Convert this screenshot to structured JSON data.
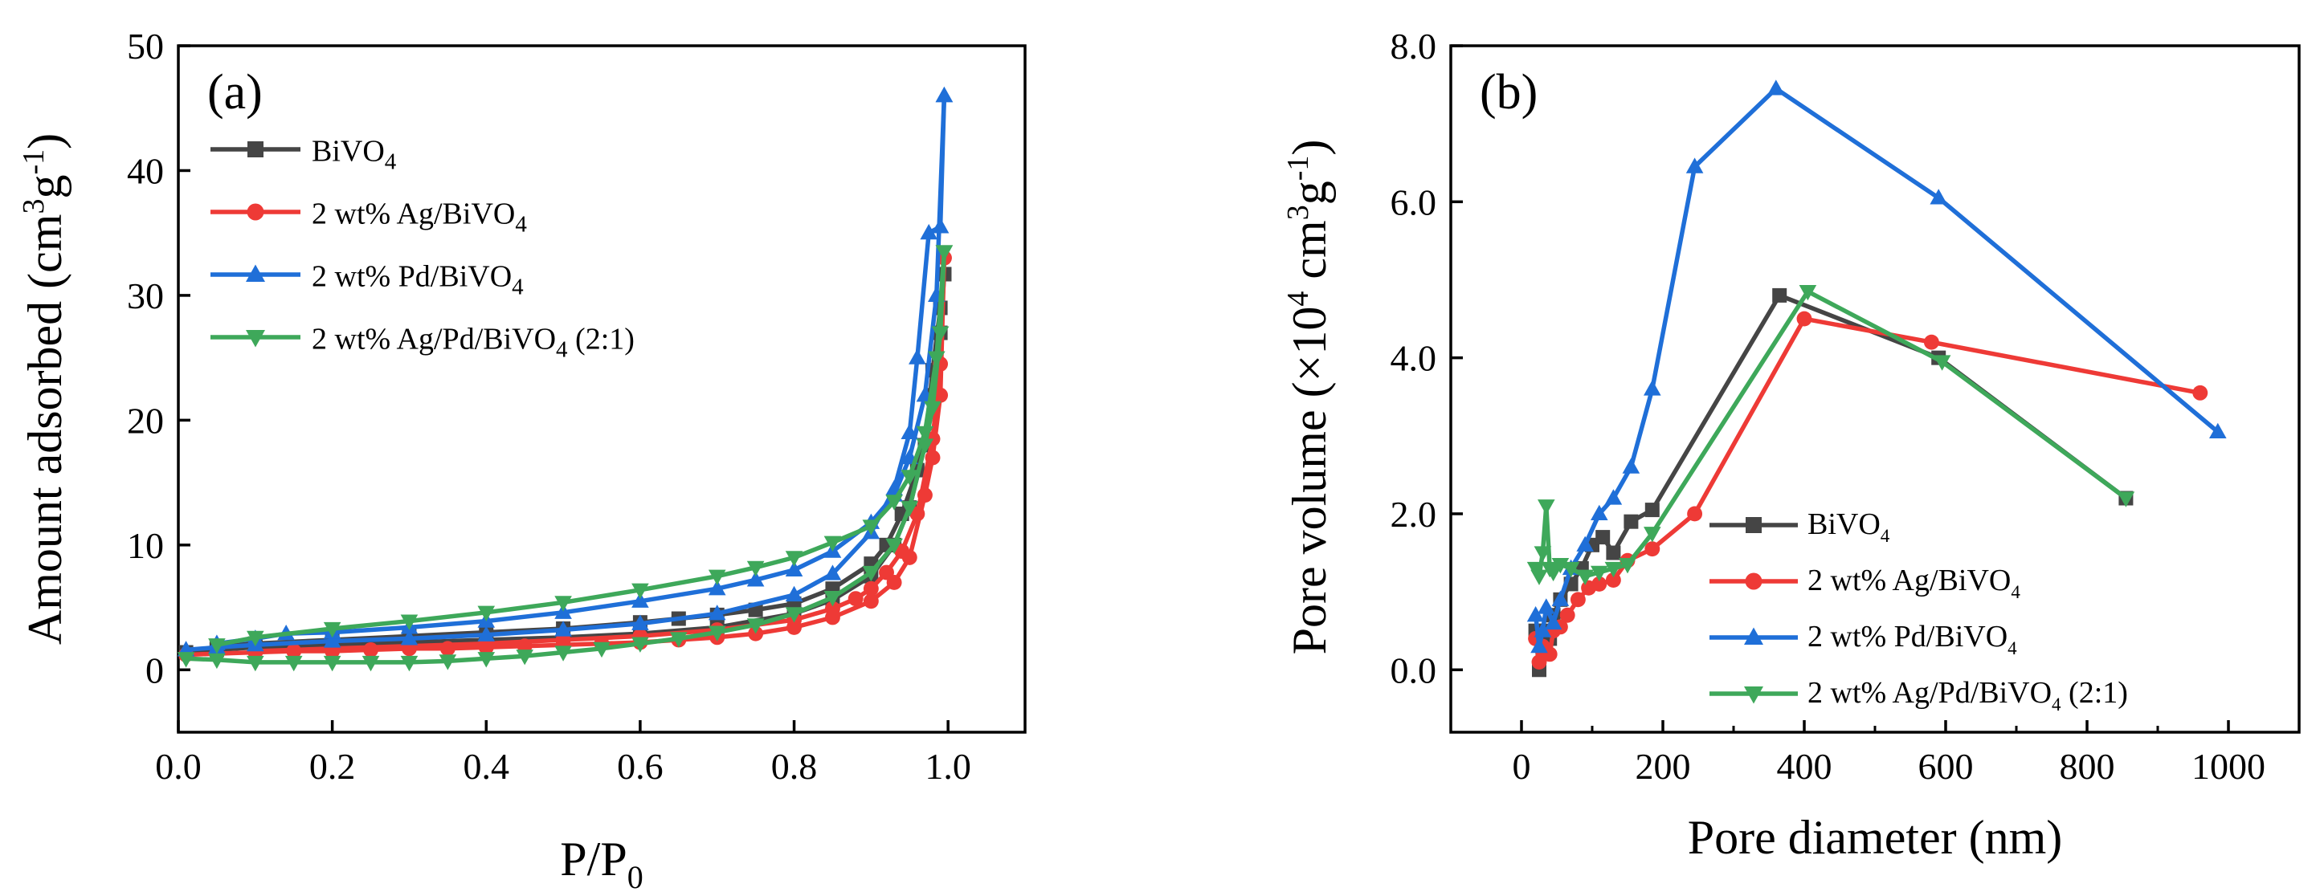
{
  "colors": {
    "BiVO4": "#454545",
    "Ag": "#ee3a36",
    "Pd": "#1f6fd8",
    "AgPd": "#3ea85a"
  },
  "chart_data": [
    {
      "type": "line",
      "panel_label": "(a)",
      "xlabel": {
        "main": "P/P",
        "sub": "0"
      },
      "ylabel": {
        "p1": "Amount adsorbed (cm",
        "sup1": "3",
        "p2": "g",
        "sup2": "-1",
        "p3": ")"
      },
      "xlim": [
        0.0,
        1.1
      ],
      "ylim": [
        -5,
        50
      ],
      "xticks": [
        {
          "v": 0.0,
          "label": "0.0"
        },
        {
          "v": 0.2,
          "label": "0.2"
        },
        {
          "v": 0.4,
          "label": "0.4"
        },
        {
          "v": 0.6,
          "label": "0.6"
        },
        {
          "v": 0.8,
          "label": "0.8"
        },
        {
          "v": 1.0,
          "label": "1.0"
        }
      ],
      "yticks": [
        {
          "v": 0,
          "label": "0"
        },
        {
          "v": 10,
          "label": "10"
        },
        {
          "v": 20,
          "label": "20"
        },
        {
          "v": 30,
          "label": "30"
        },
        {
          "v": 40,
          "label": "40"
        },
        {
          "v": 50,
          "label": "50"
        }
      ],
      "legend_position": "top-left",
      "series": [
        {
          "key": "BiVO4",
          "marker": "square",
          "legend": {
            "main": "BiVO",
            "sub": "4",
            "tail": ""
          },
          "adsorption": [
            [
              0.01,
              1.4
            ],
            [
              0.05,
              1.6
            ],
            [
              0.1,
              1.8
            ],
            [
              0.2,
              2.0
            ],
            [
              0.3,
              2.2
            ],
            [
              0.4,
              2.4
            ],
            [
              0.5,
              2.6
            ],
            [
              0.6,
              2.9
            ],
            [
              0.7,
              3.4
            ],
            [
              0.8,
              4.5
            ],
            [
              0.85,
              5.6
            ],
            [
              0.9,
              7.5
            ],
            [
              0.93,
              10
            ],
            [
              0.95,
              13
            ],
            [
              0.97,
              18
            ],
            [
              0.98,
              24
            ],
            [
              0.99,
              29
            ],
            [
              0.995,
              31.7
            ]
          ],
          "desorption": [
            [
              0.995,
              31.7
            ],
            [
              0.99,
              27
            ],
            [
              0.98,
              22
            ],
            [
              0.96,
              16
            ],
            [
              0.94,
              12.5
            ],
            [
              0.92,
              10
            ],
            [
              0.9,
              8.5
            ],
            [
              0.85,
              6.5
            ],
            [
              0.8,
              5.3
            ],
            [
              0.75,
              4.8
            ],
            [
              0.7,
              4.4
            ],
            [
              0.65,
              4.1
            ],
            [
              0.6,
              3.8
            ],
            [
              0.5,
              3.3
            ],
            [
              0.4,
              3.0
            ],
            [
              0.3,
              2.7
            ],
            [
              0.2,
              2.4
            ],
            [
              0.1,
              2.1
            ],
            [
              0.05,
              1.9
            ]
          ]
        },
        {
          "key": "Ag",
          "marker": "circle",
          "legend": {
            "main": "2 wt% Ag/BiVO",
            "sub": "4",
            "tail": ""
          },
          "adsorption": [
            [
              0.01,
              1.2
            ],
            [
              0.05,
              1.3
            ],
            [
              0.1,
              1.4
            ],
            [
              0.15,
              1.5
            ],
            [
              0.2,
              1.5
            ],
            [
              0.25,
              1.6
            ],
            [
              0.3,
              1.7
            ],
            [
              0.35,
              1.7
            ],
            [
              0.4,
              1.8
            ],
            [
              0.45,
              1.9
            ],
            [
              0.5,
              2.0
            ],
            [
              0.55,
              2.1
            ],
            [
              0.6,
              2.2
            ],
            [
              0.65,
              2.4
            ],
            [
              0.7,
              2.6
            ],
            [
              0.75,
              2.9
            ],
            [
              0.8,
              3.4
            ],
            [
              0.85,
              4.2
            ],
            [
              0.9,
              5.5
            ],
            [
              0.93,
              7
            ],
            [
              0.95,
              9
            ],
            [
              0.97,
              14
            ],
            [
              0.98,
              17
            ],
            [
              0.99,
              22
            ],
            [
              0.995,
              33
            ]
          ],
          "desorption": [
            [
              0.995,
              33
            ],
            [
              0.99,
              24.5
            ],
            [
              0.98,
              18.5
            ],
            [
              0.96,
              12.5
            ],
            [
              0.94,
              9.5
            ],
            [
              0.92,
              7.8
            ],
            [
              0.9,
              6.5
            ],
            [
              0.88,
              5.7
            ],
            [
              0.85,
              4.9
            ],
            [
              0.8,
              4.0
            ],
            [
              0.7,
              3.2
            ],
            [
              0.6,
              2.7
            ],
            [
              0.5,
              2.4
            ],
            [
              0.4,
              2.1
            ],
            [
              0.3,
              1.9
            ],
            [
              0.2,
              1.7
            ],
            [
              0.1,
              1.5
            ]
          ]
        },
        {
          "key": "Pd",
          "marker": "triangle-up",
          "legend": {
            "main": "2 wt% Pd/BiVO",
            "sub": "4",
            "tail": ""
          },
          "adsorption": [
            [
              0.01,
              1.6
            ],
            [
              0.05,
              1.8
            ],
            [
              0.1,
              2.0
            ],
            [
              0.2,
              2.3
            ],
            [
              0.3,
              2.5
            ],
            [
              0.4,
              2.8
            ],
            [
              0.5,
              3.2
            ],
            [
              0.6,
              3.7
            ],
            [
              0.7,
              4.5
            ],
            [
              0.8,
              6.0
            ],
            [
              0.85,
              7.7
            ],
            [
              0.9,
              11
            ],
            [
              0.93,
              14.5
            ],
            [
              0.95,
              19
            ],
            [
              0.96,
              25
            ],
            [
              0.975,
              35
            ],
            [
              0.99,
              35.5
            ],
            [
              0.995,
              46
            ]
          ],
          "desorption": [
            [
              0.995,
              46
            ],
            [
              0.985,
              30
            ],
            [
              0.97,
              22
            ],
            [
              0.95,
              17
            ],
            [
              0.93,
              14
            ],
            [
              0.9,
              11.8
            ],
            [
              0.85,
              9.5
            ],
            [
              0.8,
              8.0
            ],
            [
              0.75,
              7.2
            ],
            [
              0.7,
              6.5
            ],
            [
              0.6,
              5.5
            ],
            [
              0.5,
              4.6
            ],
            [
              0.4,
              3.9
            ],
            [
              0.3,
              3.4
            ],
            [
              0.2,
              3.0
            ],
            [
              0.14,
              2.9
            ],
            [
              0.1,
              2.5
            ],
            [
              0.05,
              2.1
            ]
          ]
        },
        {
          "key": "AgPd",
          "marker": "triangle-down",
          "legend": {
            "main": "2 wt% Ag/Pd/BiVO",
            "sub": "4",
            "tail": " (2:1)"
          },
          "adsorption": [
            [
              0.01,
              0.9
            ],
            [
              0.05,
              0.8
            ],
            [
              0.1,
              0.6
            ],
            [
              0.15,
              0.6
            ],
            [
              0.2,
              0.6
            ],
            [
              0.25,
              0.6
            ],
            [
              0.3,
              0.6
            ],
            [
              0.35,
              0.7
            ],
            [
              0.4,
              0.9
            ],
            [
              0.45,
              1.1
            ],
            [
              0.5,
              1.4
            ],
            [
              0.55,
              1.7
            ],
            [
              0.6,
              2.1
            ],
            [
              0.65,
              2.5
            ],
            [
              0.7,
              3.0
            ],
            [
              0.75,
              3.6
            ],
            [
              0.8,
              4.5
            ],
            [
              0.85,
              5.8
            ],
            [
              0.9,
              7.8
            ],
            [
              0.93,
              10
            ],
            [
              0.95,
              13
            ],
            [
              0.97,
              18
            ],
            [
              0.98,
              21
            ],
            [
              0.99,
              27
            ],
            [
              0.995,
              33.5
            ]
          ],
          "desorption": [
            [
              0.995,
              33.5
            ],
            [
              0.985,
              25
            ],
            [
              0.97,
              19
            ],
            [
              0.95,
              15.5
            ],
            [
              0.93,
              13.5
            ],
            [
              0.9,
              11.5
            ],
            [
              0.85,
              10.2
            ],
            [
              0.8,
              9.0
            ],
            [
              0.75,
              8.2
            ],
            [
              0.7,
              7.5
            ],
            [
              0.6,
              6.4
            ],
            [
              0.5,
              5.4
            ],
            [
              0.4,
              4.6
            ],
            [
              0.3,
              3.9
            ],
            [
              0.2,
              3.3
            ],
            [
              0.1,
              2.6
            ],
            [
              0.05,
              2.0
            ]
          ]
        }
      ]
    },
    {
      "type": "line",
      "panel_label": "(b)",
      "xlabel": {
        "main": "Pore diameter (nm)"
      },
      "ylabel": {
        "p1": "Pore volume (×10",
        "sup1": "4",
        "p2": " cm",
        "sup2": "3",
        "p3": "g",
        "sup3": "-1",
        "p4": ")"
      },
      "xlim": [
        -100,
        1100
      ],
      "ylim": [
        -0.8,
        8.0
      ],
      "xticks": [
        {
          "v": 0,
          "label": "0"
        },
        {
          "v": 200,
          "label": "200"
        },
        {
          "v": 400,
          "label": "400"
        },
        {
          "v": 600,
          "label": "600"
        },
        {
          "v": 800,
          "label": "800"
        },
        {
          "v": 1000,
          "label": "1000"
        }
      ],
      "yticks": [
        {
          "v": 0,
          "label": "0.0"
        },
        {
          "v": 2,
          "label": "2.0"
        },
        {
          "v": 4,
          "label": "4.0"
        },
        {
          "v": 6,
          "label": "6.0"
        },
        {
          "v": 8,
          "label": "8.0"
        }
      ],
      "legend_position": "lower-center",
      "series": [
        {
          "key": "BiVO4",
          "marker": "square",
          "legend": {
            "main": "BiVO",
            "sub": "4",
            "tail": ""
          },
          "points": [
            [
              20,
              0.5
            ],
            [
              25,
              0.0
            ],
            [
              30,
              0.3
            ],
            [
              35,
              0.5
            ],
            [
              40,
              0.4
            ],
            [
              45,
              0.7
            ],
            [
              55,
              0.9
            ],
            [
              70,
              1.1
            ],
            [
              85,
              1.3
            ],
            [
              100,
              1.6
            ],
            [
              115,
              1.7
            ],
            [
              130,
              1.5
            ],
            [
              155,
              1.9
            ],
            [
              185,
              2.05
            ],
            [
              365,
              4.8
            ],
            [
              590,
              4.0
            ],
            [
              855,
              2.2
            ]
          ]
        },
        {
          "key": "Ag",
          "marker": "circle",
          "legend": {
            "main": "2 wt% Ag/BiVO",
            "sub": "4",
            "tail": ""
          },
          "points": [
            [
              20,
              0.4
            ],
            [
              25,
              0.1
            ],
            [
              30,
              0.3
            ],
            [
              40,
              0.2
            ],
            [
              45,
              0.5
            ],
            [
              55,
              0.55
            ],
            [
              65,
              0.7
            ],
            [
              80,
              0.9
            ],
            [
              95,
              1.05
            ],
            [
              110,
              1.1
            ],
            [
              130,
              1.15
            ],
            [
              150,
              1.4
            ],
            [
              185,
              1.55
            ],
            [
              245,
              2.0
            ],
            [
              400,
              4.5
            ],
            [
              580,
              4.2
            ],
            [
              960,
              3.55
            ]
          ]
        },
        {
          "key": "Pd",
          "marker": "triangle-up",
          "legend": {
            "main": "2 wt% Pd/BiVO",
            "sub": "4",
            "tail": ""
          },
          "points": [
            [
              20,
              0.7
            ],
            [
              25,
              0.3
            ],
            [
              30,
              0.5
            ],
            [
              35,
              0.8
            ],
            [
              45,
              0.6
            ],
            [
              55,
              0.9
            ],
            [
              70,
              1.3
            ],
            [
              90,
              1.6
            ],
            [
              110,
              2.0
            ],
            [
              130,
              2.2
            ],
            [
              155,
              2.6
            ],
            [
              185,
              3.6
            ],
            [
              245,
              6.45
            ],
            [
              360,
              7.45
            ],
            [
              590,
              6.05
            ],
            [
              985,
              3.05
            ]
          ]
        },
        {
          "key": "AgPd",
          "marker": "triangle-down",
          "legend": {
            "main": "2 wt% Ag/Pd/BiVO",
            "sub": "4",
            "tail": " (2:1)"
          },
          "points": [
            [
              20,
              1.3
            ],
            [
              25,
              1.2
            ],
            [
              30,
              1.5
            ],
            [
              35,
              2.1
            ],
            [
              40,
              1.3
            ],
            [
              45,
              1.25
            ],
            [
              55,
              1.35
            ],
            [
              70,
              1.3
            ],
            [
              90,
              1.2
            ],
            [
              110,
              1.25
            ],
            [
              130,
              1.3
            ],
            [
              150,
              1.35
            ],
            [
              185,
              1.75
            ],
            [
              405,
              4.85
            ],
            [
              595,
              3.95
            ],
            [
              855,
              2.2
            ]
          ]
        }
      ]
    }
  ]
}
